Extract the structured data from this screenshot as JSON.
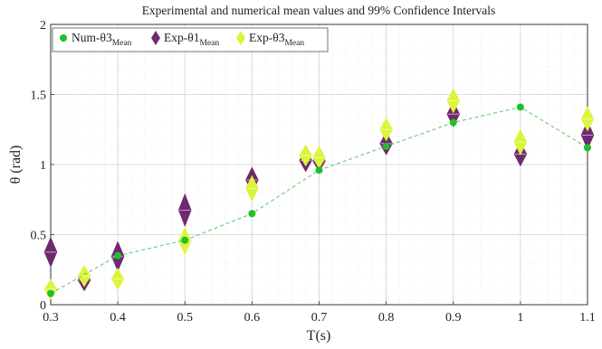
{
  "chart_data": {
    "type": "scatter",
    "title": "Experimental and numerical mean values and 99% Confidence Intervals",
    "xlabel": "T(s)",
    "ylabel": "θ (rad)",
    "xlim": [
      0.3,
      1.1
    ],
    "ylim": [
      0,
      2
    ],
    "x_ticks": [
      0.3,
      0.4,
      0.5,
      0.6,
      0.7,
      0.8,
      0.9,
      1,
      1.1
    ],
    "x_tick_labels": [
      "0.3",
      "0.4",
      "0.5",
      "0.6",
      "0.7",
      "0.8",
      "0.9",
      "1",
      "1.1"
    ],
    "y_ticks": [
      0,
      0.5,
      1,
      1.5,
      2
    ],
    "y_tick_labels": [
      "0",
      "0.5",
      "1",
      "1.5",
      "2"
    ],
    "grid": true,
    "legend_position": "top-left",
    "series": [
      {
        "legend_main": "Num-θ3",
        "legend_sub": "Mean",
        "marker": "circle",
        "line": "dashed",
        "color": "#1fbf2a",
        "points": [
          {
            "x": 0.3,
            "y": 0.08
          },
          {
            "x": 0.4,
            "y": 0.35
          },
          {
            "x": 0.5,
            "y": 0.46
          },
          {
            "x": 0.6,
            "y": 0.65
          },
          {
            "x": 0.7,
            "y": 0.96
          },
          {
            "x": 0.8,
            "y": 1.13
          },
          {
            "x": 0.9,
            "y": 1.3
          },
          {
            "x": 1.0,
            "y": 1.41
          },
          {
            "x": 1.1,
            "y": 1.12
          }
        ]
      },
      {
        "legend_main": "Exp-θ1",
        "legend_sub": "Mean",
        "marker": "diamond-interval",
        "color": "#6e2a6e",
        "intervals": [
          {
            "x": 0.3,
            "low": 0.32,
            "high": 0.43
          },
          {
            "x": 0.35,
            "low": 0.15,
            "high": 0.2
          },
          {
            "x": 0.4,
            "low": 0.29,
            "high": 0.4
          },
          {
            "x": 0.5,
            "low": 0.61,
            "high": 0.74
          },
          {
            "x": 0.6,
            "low": 0.85,
            "high": 0.93
          },
          {
            "x": 0.68,
            "low": 1.0,
            "high": 1.06
          },
          {
            "x": 0.7,
            "low": 1.0,
            "high": 1.05
          },
          {
            "x": 0.8,
            "low": 1.12,
            "high": 1.18
          },
          {
            "x": 0.9,
            "low": 1.32,
            "high": 1.4
          },
          {
            "x": 1.0,
            "low": 1.04,
            "high": 1.11
          },
          {
            "x": 1.1,
            "low": 1.16,
            "high": 1.26
          }
        ]
      },
      {
        "legend_main": "Exp-θ3",
        "legend_sub": "Mean",
        "marker": "diamond-interval",
        "color": "#dcf53a",
        "intervals": [
          {
            "x": 0.3,
            "low": 0.09,
            "high": 0.13
          },
          {
            "x": 0.35,
            "low": 0.18,
            "high": 0.23
          },
          {
            "x": 0.4,
            "low": 0.16,
            "high": 0.21
          },
          {
            "x": 0.5,
            "low": 0.41,
            "high": 0.5
          },
          {
            "x": 0.6,
            "low": 0.79,
            "high": 0.87
          },
          {
            "x": 0.68,
            "low": 1.04,
            "high": 1.09
          },
          {
            "x": 0.7,
            "low": 1.02,
            "high": 1.08
          },
          {
            "x": 0.8,
            "low": 1.22,
            "high": 1.28
          },
          {
            "x": 0.9,
            "low": 1.42,
            "high": 1.49
          },
          {
            "x": 1.0,
            "low": 1.12,
            "high": 1.2
          },
          {
            "x": 1.1,
            "low": 1.29,
            "high": 1.36
          }
        ]
      }
    ]
  }
}
